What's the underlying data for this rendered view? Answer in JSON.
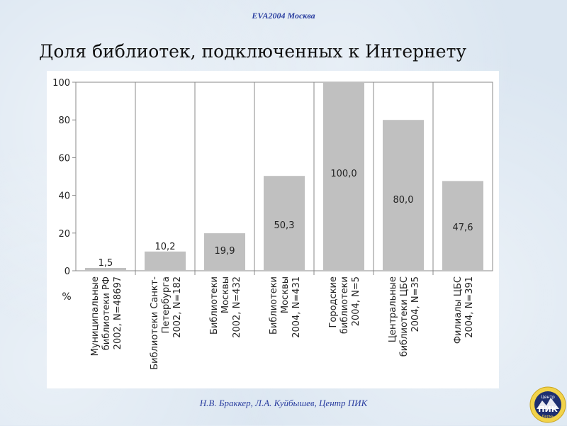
{
  "header": {
    "tag": "EVA2004 Москва"
  },
  "slide": {
    "title": "Доля библиотек, подключенных к Интернету"
  },
  "footer": {
    "credit": "Н.В. Браккер, Л.А. Куйбышев, Центр ПИК"
  },
  "logo": {
    "icon": "pik-center-logo-icon",
    "text_top": "Центр",
    "text_main": "ПИК",
    "text_bottom": "Пермь"
  },
  "chart_data": {
    "type": "bar",
    "categories": [
      [
        "Муниципальные",
        "библиотеки РФ",
        "2002, N=48697"
      ],
      [
        "Библиотеки Санкт-",
        "Петербурга",
        "2002, N=182"
      ],
      [
        "Библиотеки",
        "Москвы",
        "2002, N=432"
      ],
      [
        "Библиотеки",
        "Москвы",
        "2004, N=431"
      ],
      [
        "Городские",
        "библиотеки",
        "2004, N=5"
      ],
      [
        "Центральные",
        "библиотеки ЦБС",
        "2004, N=35"
      ],
      [
        "Филиалы ЦБС",
        "2004, N=391"
      ]
    ],
    "values": [
      1.5,
      10.2,
      19.9,
      50.3,
      100.0,
      80.0,
      47.6
    ],
    "data_labels": [
      "1,5",
      "10,2",
      "19,9",
      "50,3",
      "100,0",
      "80,0",
      "47,6"
    ],
    "title": "",
    "xlabel": "",
    "ylabel": "%",
    "ylim": [
      0,
      100
    ],
    "yticks": [
      0,
      20,
      40,
      60,
      80,
      100
    ],
    "grid": false,
    "bar_color": "#c0c0c0"
  }
}
